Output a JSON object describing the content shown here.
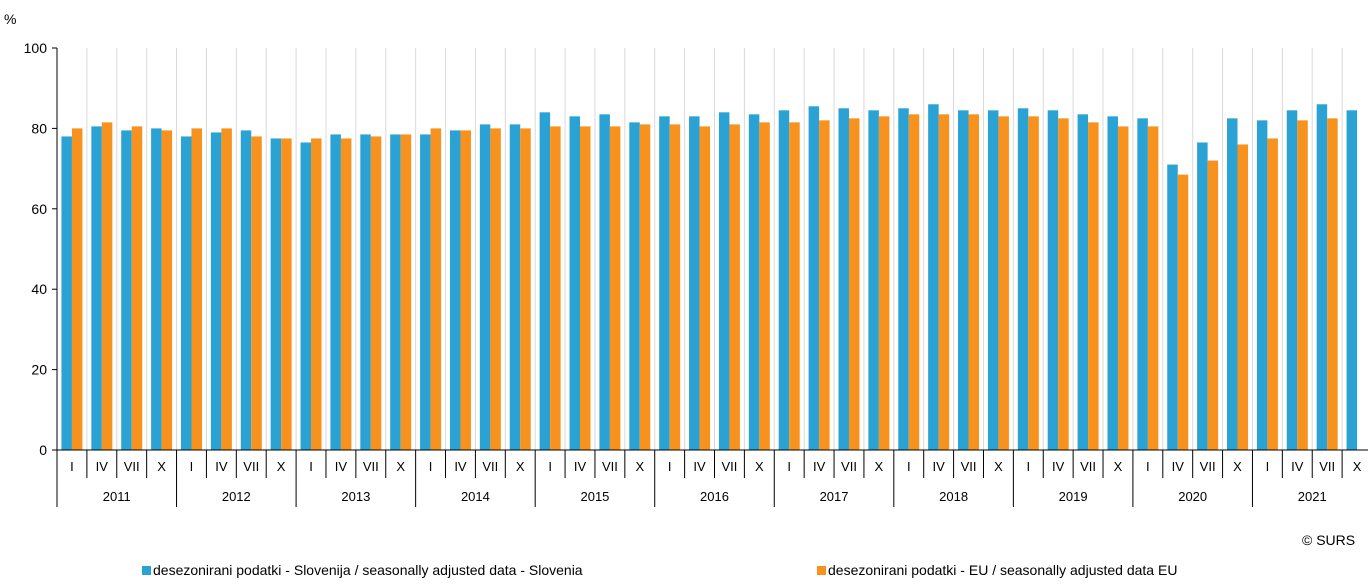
{
  "chart_data": {
    "type": "bar",
    "ylabel": "%",
    "ylim": [
      0,
      100
    ],
    "yticks": [
      0,
      20,
      40,
      60,
      80,
      100
    ],
    "grid": "vertical lines between quarters",
    "legend_position": "bottom",
    "quarter_labels": [
      "I",
      "IV",
      "VII",
      "X"
    ],
    "years": [
      "2011",
      "2012",
      "2013",
      "2014",
      "2015",
      "2016",
      "2017",
      "2018",
      "2019",
      "2020",
      "2021"
    ],
    "series": [
      {
        "name": "desezonirani podatki - Slovenija / seasonally adjusted data - Slovenia",
        "color": "#2aa3d4",
        "values": [
          78,
          80.5,
          79.5,
          80,
          78,
          79,
          79.5,
          77.5,
          76.5,
          78.5,
          78.5,
          78.5,
          78.5,
          79.5,
          81,
          81,
          84,
          83,
          83.5,
          81.5,
          83,
          83,
          84,
          83.5,
          84.5,
          85.5,
          85,
          84.5,
          85,
          86,
          84.5,
          84.5,
          85,
          84.5,
          83.5,
          83,
          82.5,
          71,
          76.5,
          82.5,
          82,
          84.5,
          86,
          84.5
        ]
      },
      {
        "name": "desezonirani podatki - EU / seasonally adjusted data EU",
        "color": "#f7921e",
        "values": [
          80,
          81.5,
          80.5,
          79.5,
          80,
          80,
          78,
          77.5,
          77.5,
          77.5,
          78,
          78.5,
          80,
          79.5,
          80,
          80,
          80.5,
          80.5,
          80.5,
          81,
          81,
          80.5,
          81,
          81.5,
          81.5,
          82,
          82.5,
          83,
          83.5,
          83.5,
          83.5,
          83,
          83,
          82.5,
          81.5,
          80.5,
          80.5,
          68.5,
          72,
          76,
          77.5,
          82,
          82.5,
          null
        ]
      }
    ]
  },
  "footer": {
    "credit": "© SURS"
  }
}
